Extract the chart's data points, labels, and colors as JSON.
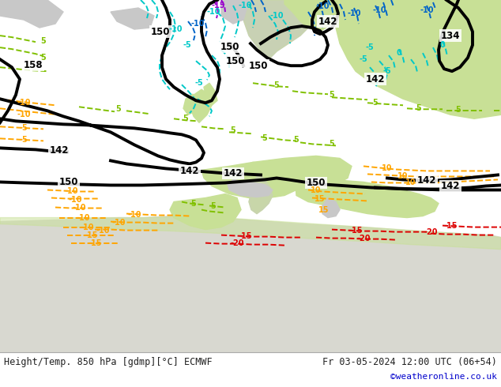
{
  "title_left": "Height/Temp. 850 hPa [gdmp][°C] ECMWF",
  "title_right": "Fr 03-05-2024 12:00 UTC (06+54)",
  "credit": "©weatheronline.co.uk",
  "bg_ocean": "#e8e8e8",
  "bg_land_green": "#c8e096",
  "bg_land_gray": "#c8c8c8",
  "bg_land_light": "#d8d8d0",
  "contour_black": "#000000",
  "contour_orange": "#ffa500",
  "contour_cyan": "#00c8c8",
  "contour_blue": "#0064c8",
  "contour_green": "#80c000",
  "contour_purple": "#9900cc",
  "contour_red": "#dd0000",
  "bottom_text_color": "#222222",
  "credit_color": "#0000cc",
  "figsize": [
    6.34,
    4.9
  ],
  "dpi": 100,
  "bottom_bar_color": "#ffffff"
}
